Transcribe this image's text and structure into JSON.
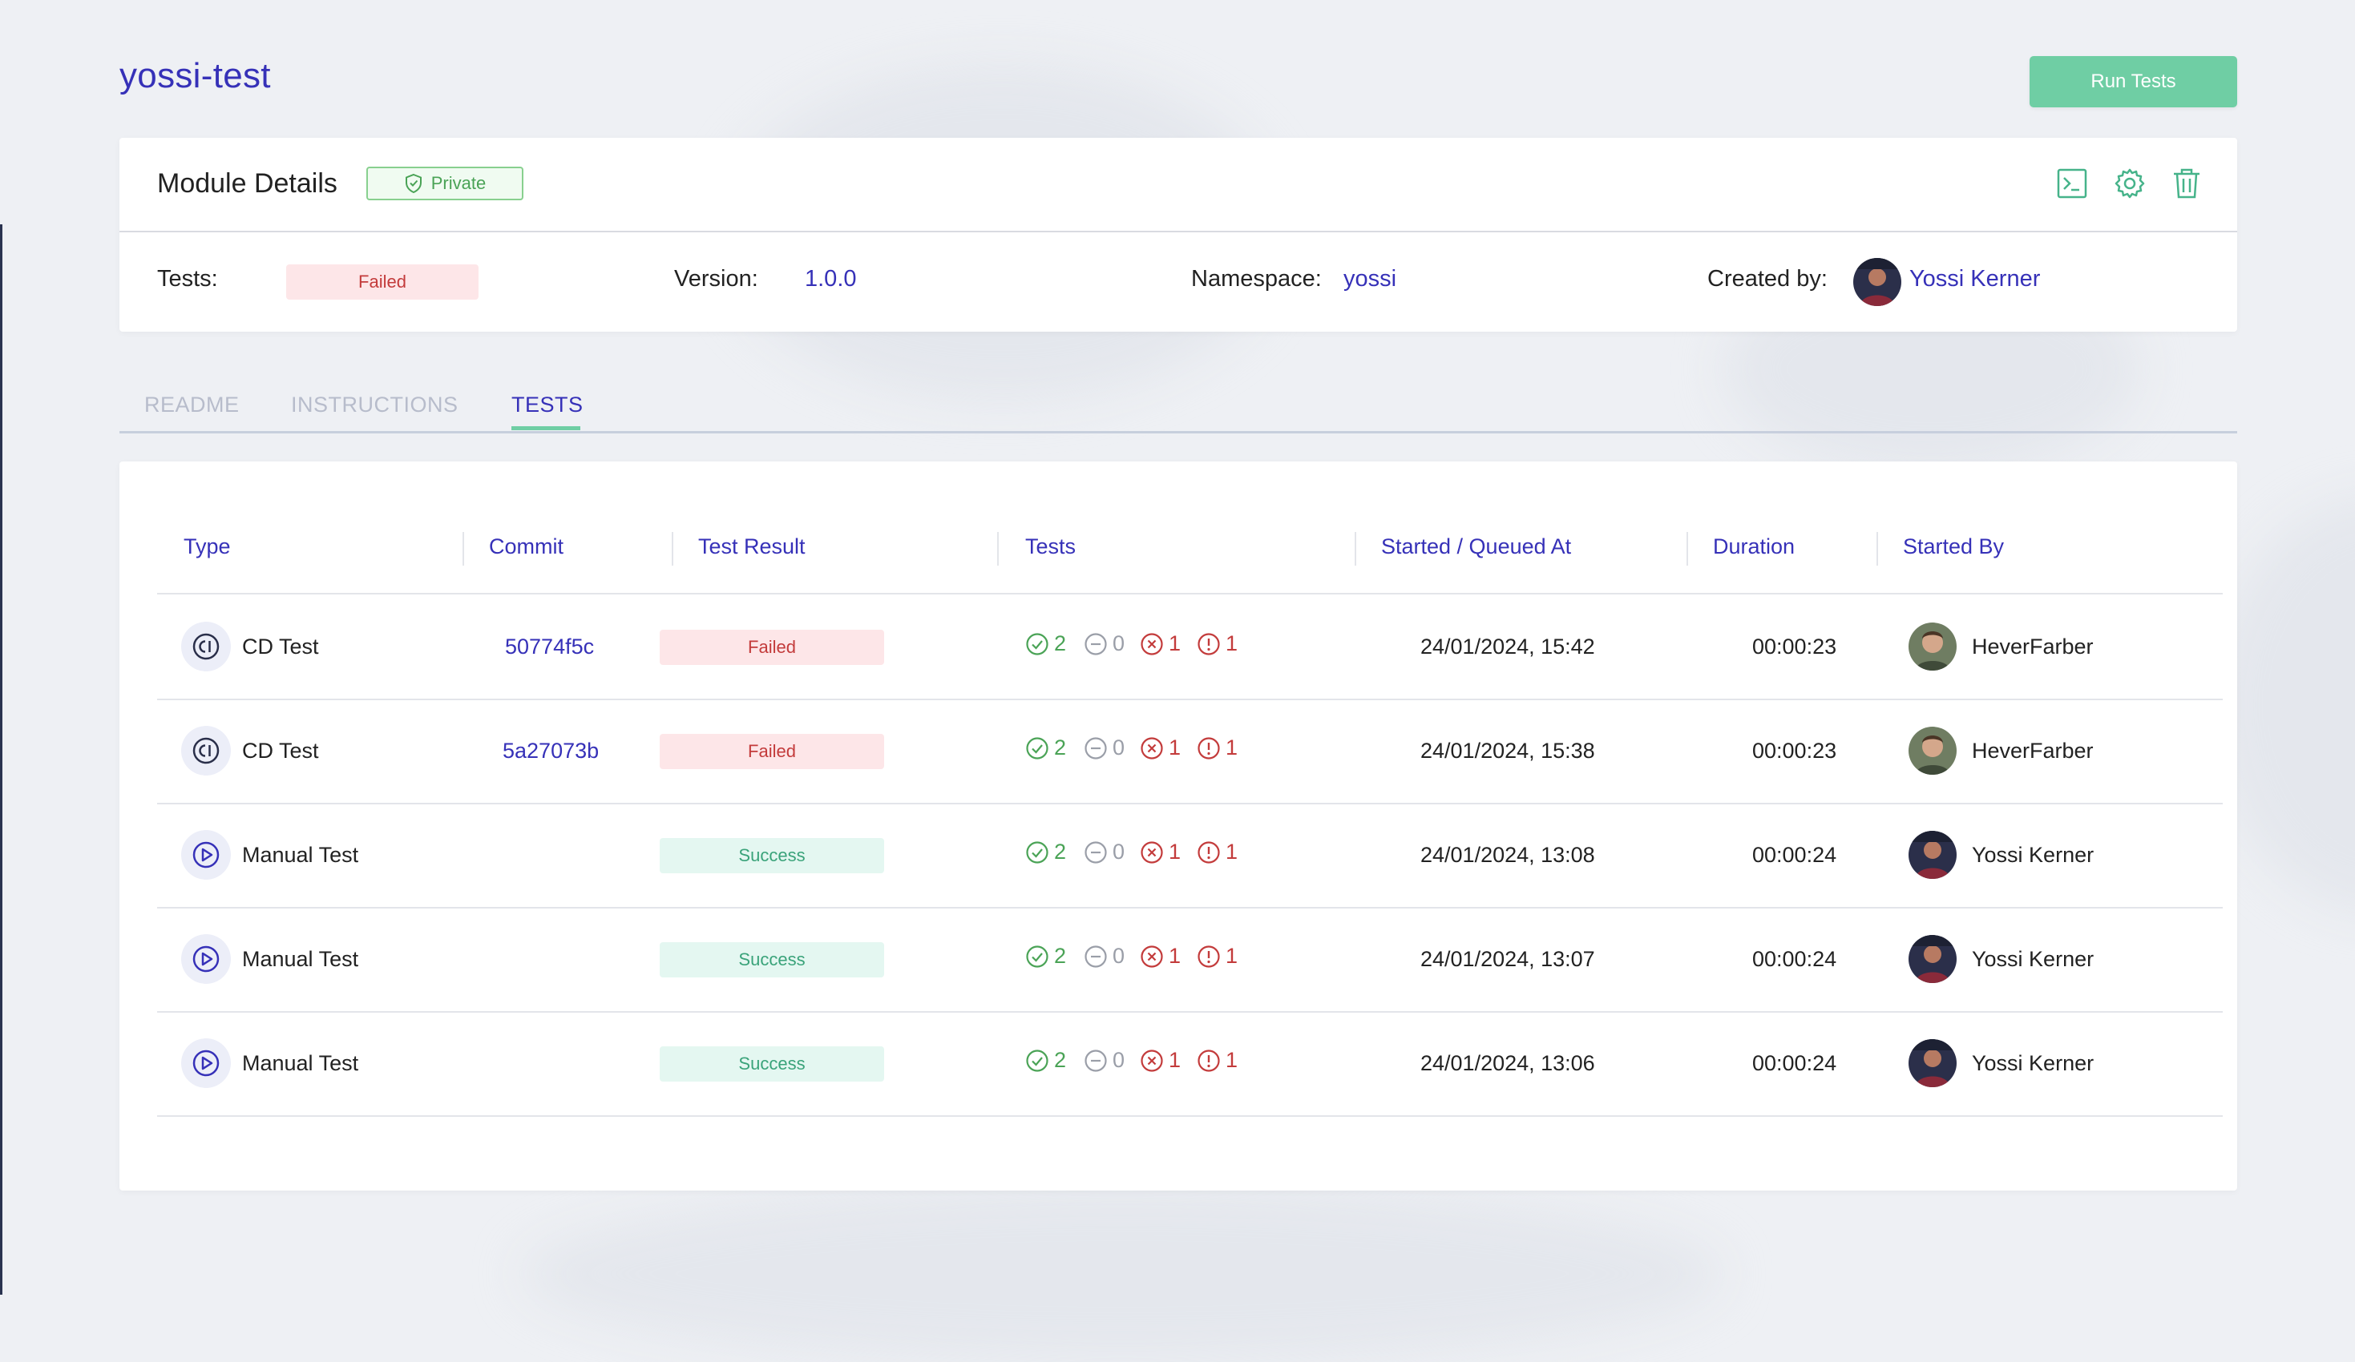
{
  "page": {
    "title": "yossi-test",
    "run_button": "Run Tests"
  },
  "module": {
    "title": "Module Details",
    "visibility": "Private",
    "tests_label": "Tests:",
    "tests_status": "Failed",
    "version_label": "Version:",
    "version": "1.0.0",
    "namespace_label": "Namespace:",
    "namespace": "yossi",
    "created_by_label": "Created by:",
    "created_by": "Yossi Kerner",
    "header_icons": [
      "terminal-icon",
      "gear-icon",
      "trash-icon"
    ]
  },
  "tabs": [
    {
      "label": "README",
      "active": false
    },
    {
      "label": "INSTRUCTIONS",
      "active": false
    },
    {
      "label": "TESTS",
      "active": true
    }
  ],
  "table": {
    "columns": [
      "Type",
      "Commit",
      "Test Result",
      "Tests",
      "Started / Queued At",
      "Duration",
      "Started By"
    ],
    "rows": [
      {
        "type": "CD Test",
        "icon": "ci-icon",
        "commit": "50774f5c",
        "result": "Failed",
        "passed": "2",
        "skipped": "0",
        "failed": "1",
        "errors": "1",
        "started_at": "24/01/2024, 15:42",
        "duration": "00:00:23",
        "started_by": "HeverFarber"
      },
      {
        "type": "CD Test",
        "icon": "ci-icon",
        "commit": "5a27073b",
        "result": "Failed",
        "passed": "2",
        "skipped": "0",
        "failed": "1",
        "errors": "1",
        "started_at": "24/01/2024, 15:38",
        "duration": "00:00:23",
        "started_by": "HeverFarber"
      },
      {
        "type": "Manual Test",
        "icon": "play-icon",
        "commit": "",
        "result": "Success",
        "passed": "2",
        "skipped": "0",
        "failed": "1",
        "errors": "1",
        "started_at": "24/01/2024, 13:08",
        "duration": "00:00:24",
        "started_by": "Yossi Kerner"
      },
      {
        "type": "Manual Test",
        "icon": "play-icon",
        "commit": "",
        "result": "Success",
        "passed": "2",
        "skipped": "0",
        "failed": "1",
        "errors": "1",
        "started_at": "24/01/2024, 13:07",
        "duration": "00:00:24",
        "started_by": "Yossi Kerner"
      },
      {
        "type": "Manual Test",
        "icon": "play-icon",
        "commit": "",
        "result": "Success",
        "passed": "2",
        "skipped": "0",
        "failed": "1",
        "errors": "1",
        "started_at": "24/01/2024, 13:06",
        "duration": "00:00:24",
        "started_by": "Yossi Kerner"
      }
    ]
  },
  "colors": {
    "accent": "#3631b8",
    "primary_button": "#6fcea4",
    "failed": "#c33b3b",
    "success": "#3aa37a",
    "passed": "#4aa356",
    "skipped": "#9a9ea8"
  }
}
